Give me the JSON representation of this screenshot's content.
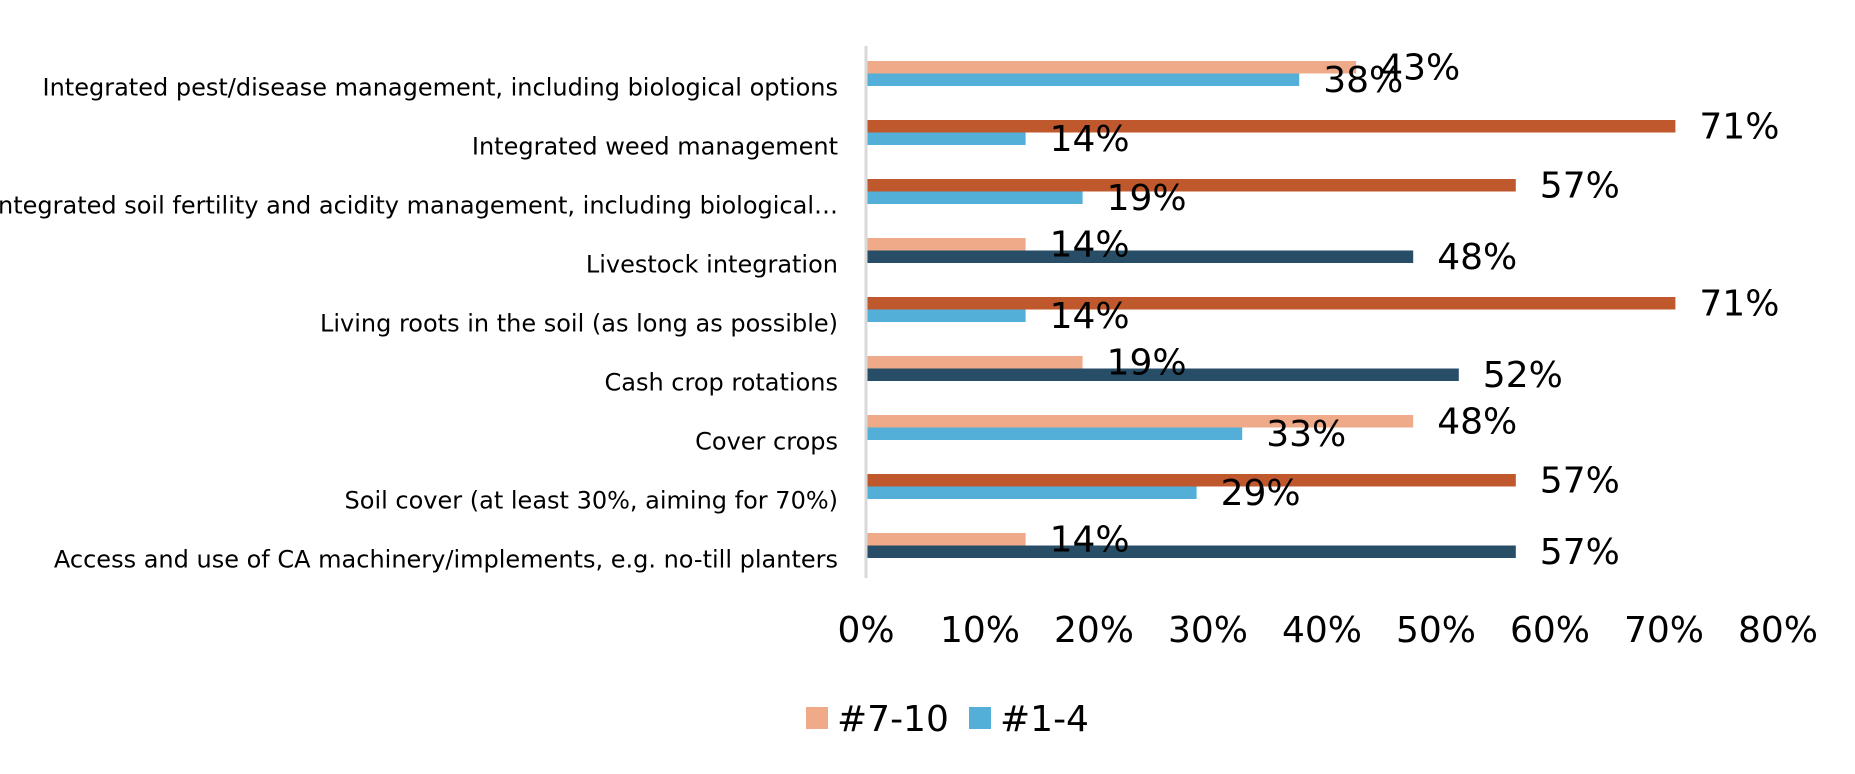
{
  "chart_data": {
    "type": "bar",
    "orientation": "horizontal",
    "categories": [
      "Integrated pest/disease management, including biological options",
      "Integrated weed management",
      "Integrated soil fertility and acidity management, including biological…",
      "Livestock integration",
      "Living roots in the soil (as long as possible)",
      "Cash crop rotations",
      "Cover crops",
      "Soil cover (at least 30%, aiming for 70%)",
      "Access and use of CA machinery/implements, e.g. no-till planters"
    ],
    "series": [
      {
        "name": "#7-10",
        "values": [
          43,
          71,
          57,
          14,
          71,
          19,
          48,
          57,
          14
        ],
        "value_labels": [
          "43%",
          "71%",
          "57%",
          "14%",
          "71%",
          "19%",
          "48%",
          "57%",
          "14%"
        ],
        "colors": [
          "#efab89",
          "#c0582e",
          "#c0582e",
          "#efab89",
          "#c0582e",
          "#efab89",
          "#efab89",
          "#c0582e",
          "#efab89"
        ]
      },
      {
        "name": "#1-4",
        "values": [
          38,
          14,
          19,
          48,
          14,
          52,
          33,
          29,
          57
        ],
        "value_labels": [
          "38%",
          "14%",
          "19%",
          "48%",
          "14%",
          "52%",
          "33%",
          "29%",
          "57%"
        ],
        "colors": [
          "#53aed8",
          "#53aed8",
          "#53aed8",
          "#284d67",
          "#53aed8",
          "#284d67",
          "#53aed8",
          "#53aed8",
          "#284d67"
        ]
      }
    ],
    "xlim": [
      0,
      80
    ],
    "x_ticks": [
      "0%",
      "10%",
      "20%",
      "30%",
      "40%",
      "50%",
      "60%",
      "70%",
      "80%"
    ],
    "legend_position": "bottom",
    "grid": false,
    "axis_color": "#d9d9d9",
    "title": "",
    "xlabel": "",
    "ylabel": ""
  }
}
